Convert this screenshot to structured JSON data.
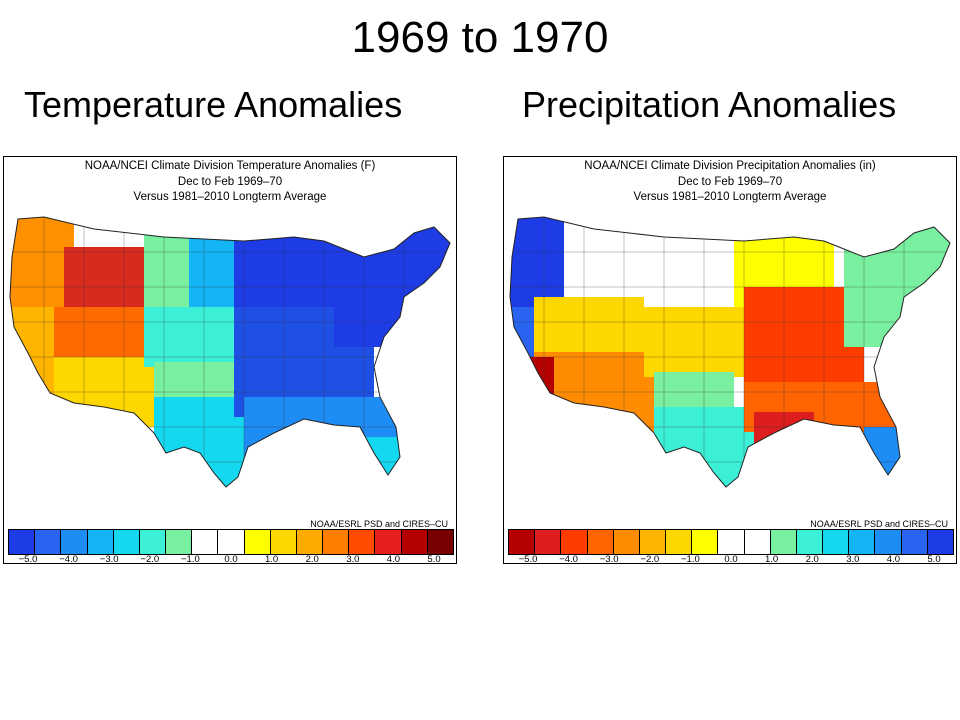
{
  "slide": {
    "title": "1969 to 1970",
    "temperature_heading": "Temperature Anomalies",
    "precipitation_heading": "Precipitation Anomalies"
  },
  "temperature_map": {
    "title_line1": "NOAA/NCEI Climate Division Temperature Anomalies (F)",
    "title_line2": "Dec to Feb 1969–70",
    "title_line3": "Versus 1981–2010 Longterm Average",
    "credit": "NOAA/ESRL PSD and CIRES–CU",
    "legend_colors": [
      "#1e3ce6",
      "#2864f0",
      "#1e8cf5",
      "#14b4f5",
      "#14d7f0",
      "#3cf0d7",
      "#78f0a0",
      "#ffffff",
      "#ffffff",
      "#ffff00",
      "#ffd700",
      "#ffaa00",
      "#ff7d00",
      "#ff4b00",
      "#e61e1e",
      "#b40000",
      "#780000"
    ],
    "ticks": [
      "−5.0",
      "−4.0",
      "−3.0",
      "−2.0",
      "−1.0",
      "0.0",
      "1.0",
      "2.0",
      "3.0",
      "4.0",
      "5.0"
    ],
    "regions": {
      "pacific_northwest": "#ff9000",
      "interior_northwest": "#d92a1e",
      "great_basin": "#ff6a00",
      "california": "#ffb400",
      "southwest": "#ffd700",
      "northern_rockies": "#78f0a0",
      "northern_plains": "#14b4f5",
      "upper_midwest": "#1e3ce6",
      "central_plains": "#3cf0d7",
      "southern_plains": "#78f0a0",
      "texas": "#14d7f0",
      "midwest": "#1e50e6",
      "northeast": "#1e3ce6",
      "southeast": "#1e8cf5",
      "florida": "#14d7f0"
    }
  },
  "precipitation_map": {
    "title_line1": "NOAA/NCEI Climate Division Precipitation Anomalies (in)",
    "title_line2": "Dec to Feb 1969–70",
    "title_line3": "Versus 1981–2010 Longterm Average",
    "credit": "NOAA/ESRL PSD and CIRES–CU",
    "legend_colors": [
      "#b40000",
      "#dc1e1e",
      "#ff3c00",
      "#ff6400",
      "#ff8c00",
      "#ffb400",
      "#ffd700",
      "#ffff00",
      "#ffffff",
      "#ffffff",
      "#78f0a0",
      "#3cf0d7",
      "#14d7f0",
      "#14b4f5",
      "#1e8cf5",
      "#2864f0",
      "#1e3ce6"
    ],
    "ticks": [
      "−5.0",
      "−4.0",
      "−3.0",
      "−2.0",
      "−1.0",
      "0.0",
      "1.0",
      "2.0",
      "3.0",
      "4.0",
      "5.0"
    ],
    "regions": {
      "pacific_northwest": "#1e3ce6",
      "northern_california": "#2864f0",
      "southern_california": "#b40000",
      "great_basin": "#ffd700",
      "southwest": "#ff8c00",
      "northern_rockies": "#ffffff",
      "northern_plains": "#ffffff",
      "upper_midwest": "#ffff00",
      "central_plains": "#ffd700",
      "southern_plains": "#78f0a0",
      "texas": "#3cf0d7",
      "midwest": "#ff3c00",
      "northeast": "#78f0a0",
      "southeast": "#ff6400",
      "gulf_coast": "#dc1e1e",
      "florida": "#1e8cf5"
    }
  }
}
